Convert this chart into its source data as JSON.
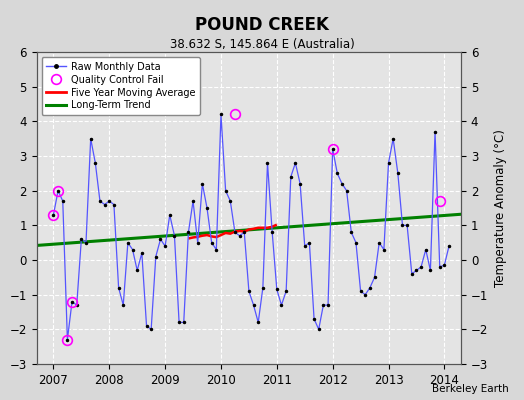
{
  "title": "POUND CREEK",
  "subtitle": "38.632 S, 145.864 E (Australia)",
  "ylabel": "Temperature Anomaly (°C)",
  "credit": "Berkeley Earth",
  "ylim": [
    -3,
    6
  ],
  "xlim": [
    2006.7,
    2014.3
  ],
  "yticks": [
    -3,
    -2,
    -1,
    0,
    1,
    2,
    3,
    4,
    5,
    6
  ],
  "xticks": [
    2007,
    2008,
    2009,
    2010,
    2011,
    2012,
    2013,
    2014
  ],
  "bg_color": "#e0e0e0",
  "plot_bg": "#e8e8e8",
  "raw_x": [
    2007.0,
    2007.083,
    2007.167,
    2007.25,
    2007.333,
    2007.417,
    2007.5,
    2007.583,
    2007.667,
    2007.75,
    2007.833,
    2007.917,
    2008.0,
    2008.083,
    2008.167,
    2008.25,
    2008.333,
    2008.417,
    2008.5,
    2008.583,
    2008.667,
    2008.75,
    2008.833,
    2008.917,
    2009.0,
    2009.083,
    2009.167,
    2009.25,
    2009.333,
    2009.417,
    2009.5,
    2009.583,
    2009.667,
    2009.75,
    2009.833,
    2009.917,
    2010.0,
    2010.083,
    2010.167,
    2010.25,
    2010.333,
    2010.417,
    2010.5,
    2010.583,
    2010.667,
    2010.75,
    2010.833,
    2010.917,
    2011.0,
    2011.083,
    2011.167,
    2011.25,
    2011.333,
    2011.417,
    2011.5,
    2011.583,
    2011.667,
    2011.75,
    2011.833,
    2011.917,
    2012.0,
    2012.083,
    2012.167,
    2012.25,
    2012.333,
    2012.417,
    2012.5,
    2012.583,
    2012.667,
    2012.75,
    2012.833,
    2012.917,
    2013.0,
    2013.083,
    2013.167,
    2013.25,
    2013.333,
    2013.417,
    2013.5,
    2013.583,
    2013.667,
    2013.75,
    2013.833,
    2013.917,
    2014.0,
    2014.083
  ],
  "raw_y": [
    1.3,
    2.0,
    1.7,
    -2.3,
    -1.2,
    -1.3,
    0.6,
    0.5,
    3.5,
    2.8,
    1.7,
    1.6,
    1.7,
    1.6,
    -0.8,
    -1.3,
    0.5,
    0.3,
    -0.3,
    0.2,
    -1.9,
    -2.0,
    0.1,
    0.6,
    0.4,
    1.3,
    0.7,
    -1.8,
    -1.8,
    0.8,
    1.7,
    0.5,
    2.2,
    1.5,
    0.5,
    0.3,
    4.2,
    2.0,
    1.7,
    0.8,
    0.7,
    0.8,
    -0.9,
    -1.3,
    -1.8,
    -0.8,
    2.8,
    0.8,
    -0.85,
    -1.3,
    -0.9,
    2.4,
    2.8,
    2.2,
    0.4,
    0.5,
    -1.7,
    -2.0,
    -1.3,
    -1.3,
    3.2,
    2.5,
    2.2,
    2.0,
    0.8,
    0.5,
    -0.9,
    -1.0,
    -0.8,
    -0.5,
    0.5,
    0.3,
    2.8,
    3.5,
    2.5,
    1.0,
    1.0,
    -0.4,
    -0.3,
    -0.2,
    0.3,
    -0.3,
    3.7,
    -0.2,
    -0.15,
    0.4
  ],
  "qc_fail_x": [
    2007.0,
    2007.083,
    2007.25,
    2007.333,
    2010.25,
    2012.0,
    2013.917
  ],
  "qc_fail_y": [
    1.3,
    2.0,
    -2.3,
    -1.2,
    4.2,
    3.2,
    1.7
  ],
  "moving_avg_x": [
    2009.417,
    2009.5,
    2009.583,
    2009.667,
    2009.75,
    2009.833,
    2009.917,
    2010.0,
    2010.083,
    2010.167,
    2010.25,
    2010.333,
    2010.417,
    2010.5,
    2010.583,
    2010.667,
    2010.75,
    2010.833,
    2010.917,
    2011.0
  ],
  "moving_avg_y": [
    0.62,
    0.65,
    0.67,
    0.7,
    0.72,
    0.68,
    0.66,
    0.72,
    0.78,
    0.76,
    0.82,
    0.84,
    0.82,
    0.88,
    0.9,
    0.93,
    0.93,
    0.93,
    0.96,
    1.02
  ],
  "trend_x": [
    2006.7,
    2014.3
  ],
  "trend_y": [
    0.42,
    1.32
  ]
}
